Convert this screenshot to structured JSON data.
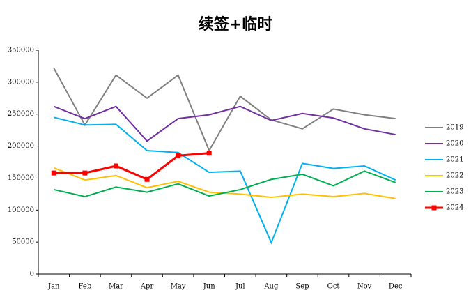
{
  "chart_data": {
    "type": "line",
    "title": "续签+临时",
    "categories": [
      "Jan",
      "Feb",
      "Mar",
      "Apr",
      "May",
      "Jun",
      "Jul",
      "Aug",
      "Sep",
      "Oct",
      "Nov",
      "Dec"
    ],
    "series": [
      {
        "name": "2019",
        "color": "#808080",
        "values": [
          322000,
          233000,
          311000,
          275000,
          311000,
          193000,
          278000,
          241000,
          227000,
          258000,
          249000,
          243000
        ]
      },
      {
        "name": "2020",
        "color": "#7030a0",
        "values": [
          262000,
          243000,
          262000,
          208000,
          243000,
          249000,
          262000,
          240000,
          251000,
          244000,
          227000,
          218000
        ]
      },
      {
        "name": "2021",
        "color": "#00b0f0",
        "values": [
          245000,
          233000,
          234000,
          193000,
          190000,
          159000,
          161000,
          49000,
          173000,
          165000,
          169000,
          147000
        ]
      },
      {
        "name": "2022",
        "color": "#ffc000",
        "values": [
          166000,
          147000,
          154000,
          135000,
          145000,
          128000,
          125000,
          120000,
          125000,
          121000,
          126000,
          118000
        ]
      },
      {
        "name": "2023",
        "color": "#00b050",
        "values": [
          132000,
          121000,
          136000,
          128000,
          141000,
          122000,
          132000,
          148000,
          156000,
          138000,
          161000,
          143000
        ]
      },
      {
        "name": "2024",
        "color": "#ff0000",
        "marker": "square",
        "values": [
          158000,
          158000,
          169000,
          148000,
          185000,
          189000,
          null,
          null,
          null,
          null,
          null,
          null
        ]
      }
    ],
    "ylim": [
      0,
      350000
    ],
    "yticks": [
      0,
      50000,
      100000,
      150000,
      200000,
      250000,
      300000,
      350000
    ],
    "grid": false,
    "legend": "right"
  }
}
